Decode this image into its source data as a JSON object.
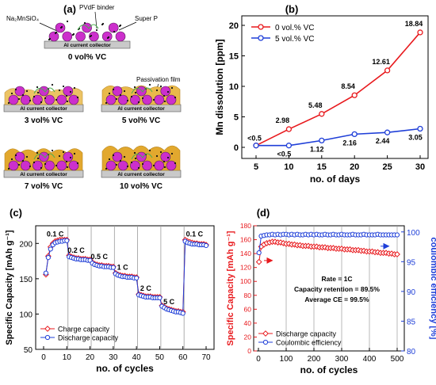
{
  "panels": {
    "a": {
      "label": "(a)",
      "callouts": {
        "material": "Na₂MnSiO₄",
        "binder": "PVdF binder",
        "carbon": "Super P",
        "film": "Passivation film"
      },
      "collector_label": "Al current collector",
      "cells": [
        {
          "caption": "0 vol% VC",
          "film": 0
        },
        {
          "caption": "3 vol% VC",
          "film": 1
        },
        {
          "caption": "5 vol% VC",
          "film": 2
        },
        {
          "caption": "7 vol% VC",
          "film": 3
        },
        {
          "caption": "10 vol% VC",
          "film": 4
        }
      ]
    },
    "b": {
      "label": "(b)"
    },
    "c": {
      "label": "(c)"
    },
    "d": {
      "label": "(d)"
    }
  },
  "chart_data": [
    {
      "id": "b",
      "type": "line",
      "xlabel": "no. of days",
      "ylabel": "Mn dissolution [ppm]",
      "xlim": [
        5,
        30
      ],
      "ylim": [
        0,
        20
      ],
      "xticks": [
        5,
        10,
        15,
        20,
        25,
        30
      ],
      "yticks": [
        0,
        5,
        10,
        15,
        20
      ],
      "legend": "top-left",
      "x": [
        5,
        10,
        15,
        20,
        25,
        30
      ],
      "series": [
        {
          "name": "0 vol.% VC",
          "color": "#e8191d",
          "values": [
            0.3,
            2.98,
            5.48,
            8.54,
            12.61,
            18.84
          ],
          "labels": [
            "<0.5",
            "2.98",
            "5.48",
            "8.54",
            "12.61",
            "18.84"
          ]
        },
        {
          "name": "5 vol.% VC",
          "color": "#1f3fd8",
          "values": [
            0.3,
            0.3,
            1.12,
            2.16,
            2.44,
            3.05
          ],
          "labels": [
            "",
            "<0.5",
            "1.12",
            "2.16",
            "2.44",
            "3.05"
          ]
        }
      ]
    },
    {
      "id": "c",
      "type": "line",
      "xlabel": "no. of cycles",
      "ylabel": "Specific Capacity [mAh g⁻¹]",
      "xlim": [
        0,
        70
      ],
      "ylim": [
        50,
        225
      ],
      "xticks": [
        0,
        10,
        20,
        30,
        40,
        50,
        60,
        70
      ],
      "yticks": [
        50,
        100,
        150,
        200
      ],
      "legend": "bottom-left",
      "rate_labels": [
        {
          "text": "0.1 C",
          "x": 5,
          "y": 210
        },
        {
          "text": "0.2 C",
          "x": 14,
          "y": 187
        },
        {
          "text": "0.5 C",
          "x": 24,
          "y": 178
        },
        {
          "text": "1 C",
          "x": 34,
          "y": 163
        },
        {
          "text": "2 C",
          "x": 44,
          "y": 133
        },
        {
          "text": "5 C",
          "x": 54,
          "y": 114
        },
        {
          "text": "0.1 C",
          "x": 65,
          "y": 210
        }
      ],
      "x": [
        1,
        2,
        3,
        4,
        5,
        6,
        7,
        8,
        9,
        10,
        11,
        12,
        13,
        14,
        15,
        16,
        17,
        18,
        19,
        20,
        21,
        22,
        23,
        24,
        25,
        26,
        27,
        28,
        29,
        30,
        31,
        32,
        33,
        34,
        35,
        36,
        37,
        38,
        39,
        40,
        41,
        42,
        43,
        44,
        45,
        46,
        47,
        48,
        49,
        50,
        51,
        52,
        53,
        54,
        55,
        56,
        57,
        58,
        59,
        60,
        61,
        62,
        63,
        64,
        65,
        66,
        67,
        68,
        69,
        70
      ],
      "series": [
        {
          "name": "Charge capacity",
          "color": "#e8191d",
          "values": [
            156,
            182,
            195,
            200,
            203,
            204,
            205,
            205,
            205,
            205,
            183,
            181,
            180,
            179,
            179,
            178,
            178,
            178,
            177,
            177,
            173,
            171,
            170,
            169,
            169,
            168,
            168,
            168,
            167,
            167,
            158,
            156,
            155,
            154,
            154,
            153,
            153,
            153,
            152,
            152,
            128,
            127,
            126,
            125,
            125,
            125,
            124,
            124,
            124,
            124,
            112,
            110,
            108,
            107,
            106,
            105,
            104,
            104,
            103,
            103,
            205,
            203,
            202,
            201,
            200,
            200,
            199,
            199,
            199,
            198
          ]
        },
        {
          "name": "Discharge capacity",
          "color": "#1f3fd8",
          "values": [
            158,
            180,
            192,
            198,
            201,
            202,
            203,
            203,
            204,
            204,
            181,
            180,
            179,
            178,
            178,
            177,
            177,
            177,
            176,
            176,
            172,
            170,
            169,
            168,
            168,
            167,
            167,
            167,
            166,
            166,
            157,
            155,
            154,
            153,
            153,
            152,
            152,
            152,
            151,
            151,
            127,
            126,
            125,
            124,
            124,
            124,
            123,
            123,
            123,
            123,
            111,
            109,
            107,
            106,
            105,
            104,
            103,
            103,
            102,
            101,
            203,
            201,
            200,
            199,
            199,
            199,
            198,
            198,
            198,
            197
          ]
        }
      ]
    },
    {
      "id": "d",
      "type": "line",
      "xlabel": "no. of cycles",
      "ylabel": "Specific Capacity [mAh g⁻¹]",
      "y2label": "coulombic efficiency [%]",
      "xlim": [
        0,
        520
      ],
      "ylim": [
        0,
        180
      ],
      "y2lim": [
        80,
        100.5
      ],
      "xticks": [
        0,
        100,
        200,
        300,
        400,
        500
      ],
      "yticks": [
        0,
        20,
        40,
        60,
        80,
        100,
        120,
        140,
        160,
        180
      ],
      "y2ticks": [
        80,
        85,
        90,
        95,
        100
      ],
      "legend": "bottom-left",
      "annotations": [
        "Rate = 1C",
        "Capacity retention = 89.5%",
        "Average CE = 99.5%"
      ],
      "x": [
        2,
        10,
        20,
        30,
        40,
        50,
        60,
        70,
        80,
        90,
        100,
        110,
        120,
        130,
        140,
        150,
        160,
        170,
        180,
        190,
        200,
        210,
        220,
        230,
        240,
        250,
        260,
        270,
        280,
        290,
        300,
        310,
        320,
        330,
        340,
        350,
        360,
        370,
        380,
        390,
        400,
        410,
        420,
        430,
        440,
        450,
        460,
        470,
        480,
        490,
        500
      ],
      "series": [
        {
          "name": "Discharge capacity",
          "axis": "left",
          "color": "#e8191d",
          "values": [
            128,
            150,
            153,
            155,
            156,
            157,
            157,
            156,
            156,
            155,
            154,
            154,
            153,
            153,
            152,
            152,
            151,
            151,
            151,
            150,
            150,
            150,
            149,
            149,
            149,
            148,
            148,
            148,
            147,
            147,
            147,
            146,
            146,
            146,
            145,
            145,
            145,
            144,
            144,
            143,
            143,
            143,
            142,
            142,
            141,
            141,
            141,
            140,
            140,
            139,
            139
          ]
        },
        {
          "name": "Coulombic efficiency",
          "axis": "right",
          "color": "#1f3fd8",
          "values": [
            96.5,
            99.3,
            99.4,
            99.5,
            99.5,
            99.6,
            99.5,
            99.6,
            99.5,
            99.6,
            99.6,
            99.5,
            99.6,
            99.5,
            99.6,
            99.5,
            99.5,
            99.6,
            99.5,
            99.6,
            99.5,
            99.6,
            99.5,
            99.5,
            99.6,
            99.5,
            99.5,
            99.6,
            99.5,
            99.5,
            99.6,
            99.5,
            99.5,
            99.5,
            99.6,
            99.5,
            99.5,
            99.5,
            99.6,
            99.5,
            99.5,
            99.5,
            99.5,
            99.6,
            99.5,
            99.5,
            99.5,
            99.5,
            99.5,
            99.5,
            99.5
          ]
        }
      ]
    }
  ]
}
